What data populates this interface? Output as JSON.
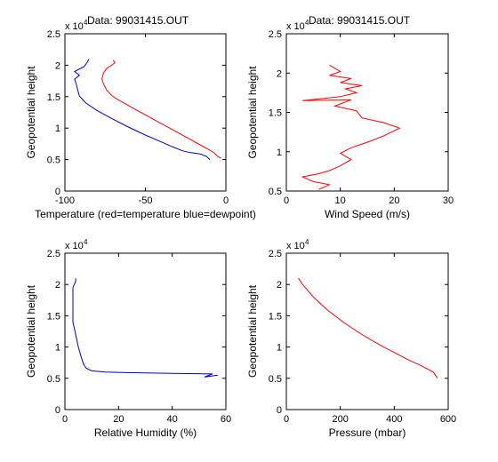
{
  "chart_data": [
    {
      "type": "line",
      "title": "Data: 99031415.OUT",
      "xlabel": "Temperature (red=temperature blue=dewpoint)",
      "ylabel": "Geopotential height",
      "y_exponent": "x 10",
      "y_exponent_power": "4",
      "xlim": [
        -100,
        0
      ],
      "ylim": [
        0,
        25000
      ],
      "xticks": [
        -100,
        -50,
        0
      ],
      "xtick_labels": [
        "-100",
        "-50",
        "0"
      ],
      "yticks": [
        0,
        5000,
        10000,
        15000,
        20000,
        25000
      ],
      "ytick_labels": [
        "0",
        "0.5",
        "1",
        "1.5",
        "2",
        "2.5"
      ],
      "grid": false,
      "series": [
        {
          "color": "#ff0000",
          "points": [
            [
              -3,
              5200
            ],
            [
              -5,
              5500
            ],
            [
              -7,
              6000
            ],
            [
              -10,
              6500
            ],
            [
              -15,
              7200
            ],
            [
              -25,
              8600
            ],
            [
              -35,
              10000
            ],
            [
              -45,
              11400
            ],
            [
              -55,
              12800
            ],
            [
              -62,
              13800
            ],
            [
              -67,
              14500
            ],
            [
              -71,
              15200
            ],
            [
              -74,
              16000
            ],
            [
              -76,
              17000
            ],
            [
              -77,
              17800
            ],
            [
              -76,
              18800
            ],
            [
              -74,
              19500
            ],
            [
              -71,
              20000
            ],
            [
              -69,
              20400
            ],
            [
              -70,
              20800
            ]
          ]
        },
        {
          "color": "#0000cc",
          "points": [
            [
              -10,
              5000
            ],
            [
              -12,
              5500
            ],
            [
              -16,
              5900
            ],
            [
              -22,
              6100
            ],
            [
              -27,
              6400
            ],
            [
              -33,
              7000
            ],
            [
              -40,
              7800
            ],
            [
              -50,
              8900
            ],
            [
              -60,
              10100
            ],
            [
              -70,
              11400
            ],
            [
              -80,
              12800
            ],
            [
              -87,
              14000
            ],
            [
              -91,
              15100
            ],
            [
              -92,
              16000
            ],
            [
              -93,
              17000
            ],
            [
              -94,
              17800
            ],
            [
              -91,
              18400
            ],
            [
              -94,
              19000
            ],
            [
              -88,
              19800
            ],
            [
              -86,
              20500
            ],
            [
              -85,
              21000
            ]
          ]
        }
      ]
    },
    {
      "type": "line",
      "title": "Data: 99031415.OUT",
      "xlabel": "Wind Speed (m/s)",
      "ylabel": "Geopotential height",
      "y_exponent": "x 10",
      "y_exponent_power": "4",
      "xlim": [
        0,
        30
      ],
      "ylim": [
        5000,
        25000
      ],
      "xticks": [
        0,
        10,
        20,
        30
      ],
      "xtick_labels": [
        "0",
        "10",
        "20",
        "30"
      ],
      "yticks": [
        5000,
        10000,
        15000,
        20000,
        25000
      ],
      "ytick_labels": [
        "0.5",
        "1",
        "1.5",
        "2",
        "2.5"
      ],
      "grid": false,
      "series": [
        {
          "color": "#ff0000",
          "points": [
            [
              6,
              5200
            ],
            [
              8,
              5800
            ],
            [
              5,
              6200
            ],
            [
              3,
              6800
            ],
            [
              6,
              7200
            ],
            [
              8,
              7600
            ],
            [
              10,
              8200
            ],
            [
              12,
              9000
            ],
            [
              10,
              9800
            ],
            [
              12,
              10500
            ],
            [
              15,
              11200
            ],
            [
              18,
              12000
            ],
            [
              21,
              13000
            ],
            [
              18,
              13700
            ],
            [
              14,
              14300
            ],
            [
              13,
              15200
            ],
            [
              9,
              15800
            ],
            [
              12,
              16600
            ],
            [
              3,
              16500
            ],
            [
              10,
              17000
            ],
            [
              13,
              17500
            ],
            [
              11,
              18000
            ],
            [
              14,
              18400
            ],
            [
              10,
              18800
            ],
            [
              12,
              19300
            ],
            [
              8,
              19700
            ],
            [
              10,
              20200
            ],
            [
              9,
              20600
            ],
            [
              8,
              21000
            ]
          ]
        }
      ]
    },
    {
      "type": "line",
      "title": "",
      "xlabel": "Relative Humidity (%)",
      "ylabel": "Geopotential height",
      "y_exponent": "x 10",
      "y_exponent_power": "4",
      "xlim": [
        0,
        60
      ],
      "ylim": [
        0,
        25000
      ],
      "xticks": [
        0,
        20,
        40,
        60
      ],
      "xtick_labels": [
        "0",
        "20",
        "40",
        "60"
      ],
      "yticks": [
        0,
        5000,
        10000,
        15000,
        20000,
        25000
      ],
      "ytick_labels": [
        "0",
        "0.5",
        "1",
        "1.5",
        "2",
        "2.5"
      ],
      "grid": false,
      "series": [
        {
          "color": "#0000cc",
          "points": [
            [
              57,
              5500
            ],
            [
              52,
              5200
            ],
            [
              55,
              5700
            ],
            [
              40,
              5800
            ],
            [
              25,
              5900
            ],
            [
              15,
              6000
            ],
            [
              10,
              6200
            ],
            [
              8,
              6600
            ],
            [
              7,
              7200
            ],
            [
              6,
              8500
            ],
            [
              5,
              10000
            ],
            [
              4,
              12000
            ],
            [
              3,
              14000
            ],
            [
              3,
              16000
            ],
            [
              3,
              18000
            ],
            [
              3,
              19500
            ],
            [
              4,
              20500
            ],
            [
              4,
              21000
            ]
          ]
        }
      ]
    },
    {
      "type": "line",
      "title": "",
      "xlabel": "Pressure (mbar)",
      "ylabel": "Geopotential height",
      "y_exponent": "x 10",
      "y_exponent_power": "4",
      "xlim": [
        0,
        600
      ],
      "ylim": [
        0,
        25000
      ],
      "xticks": [
        0,
        200,
        400,
        600
      ],
      "xtick_labels": [
        "0",
        "200",
        "400",
        "600"
      ],
      "yticks": [
        0,
        5000,
        10000,
        15000,
        20000,
        25000
      ],
      "ytick_labels": [
        "0",
        "0.5",
        "1",
        "1.5",
        "2",
        "2.5"
      ],
      "grid": false,
      "series": [
        {
          "color": "#ff0000",
          "points": [
            [
              45,
              21000
            ],
            [
              60,
              20000
            ],
            [
              80,
              19000
            ],
            [
              100,
              18000
            ],
            [
              125,
              17000
            ],
            [
              150,
              16000
            ],
            [
              180,
              15000
            ],
            [
              210,
              14000
            ],
            [
              245,
              13000
            ],
            [
              280,
              12000
            ],
            [
              320,
              11000
            ],
            [
              360,
              10000
            ],
            [
              405,
              9000
            ],
            [
              450,
              8000
            ],
            [
              500,
              7000
            ],
            [
              545,
              6000
            ],
            [
              560,
              5000
            ]
          ]
        }
      ]
    }
  ]
}
